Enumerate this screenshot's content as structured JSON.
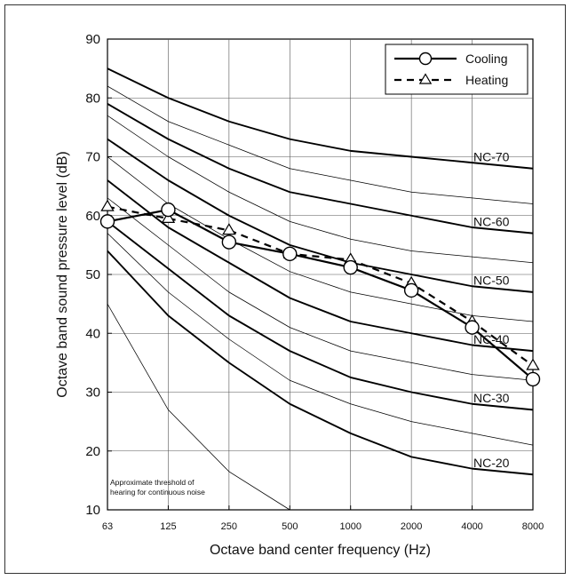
{
  "chart_data": {
    "type": "line",
    "xlabel": "Octave band center frequency (Hz)",
    "ylabel": "Octave band sound pressure level (dB)",
    "x_categories": [
      "63",
      "125",
      "250",
      "500",
      "1000",
      "2000",
      "4000",
      "8000"
    ],
    "ylim": [
      10,
      90
    ],
    "yticks": [
      10,
      20,
      30,
      40,
      50,
      60,
      70,
      80,
      90
    ],
    "grid": true,
    "legend_position": "top-right",
    "series": [
      {
        "name": "Cooling",
        "style": "solid-circle",
        "color": "#000000",
        "values": [
          59,
          61,
          55.5,
          53.5,
          51.2,
          47.3,
          41,
          32.2
        ]
      },
      {
        "name": "Heating",
        "style": "dashed-triangle",
        "color": "#000000",
        "values": [
          61.5,
          59.5,
          57.5,
          53.5,
          52.5,
          48.5,
          42,
          34.5
        ]
      }
    ],
    "nc_curves": [
      {
        "label": "NC-70",
        "values": [
          85,
          80,
          76,
          73,
          71,
          70,
          69,
          68
        ]
      },
      {
        "label": "",
        "values": [
          82,
          76,
          72,
          68,
          66,
          64,
          63,
          62
        ]
      },
      {
        "label": "NC-60",
        "values": [
          79,
          73,
          68,
          64,
          62,
          60,
          58,
          57
        ]
      },
      {
        "label": "",
        "values": [
          77,
          70,
          64,
          59,
          56,
          54,
          53,
          52
        ]
      },
      {
        "label": "NC-50",
        "values": [
          73,
          66,
          60,
          55,
          52,
          50,
          48,
          47
        ]
      },
      {
        "label": "",
        "values": [
          70,
          62,
          56,
          50.5,
          47,
          45,
          43,
          42
        ]
      },
      {
        "label": "NC-40",
        "values": [
          66,
          58,
          52,
          46,
          42,
          40,
          38,
          37
        ]
      },
      {
        "label": "",
        "values": [
          63,
          55,
          47,
          41,
          37,
          35,
          33,
          32
        ]
      },
      {
        "label": "NC-30",
        "values": [
          59,
          51,
          43,
          37,
          32.5,
          30,
          28,
          27
        ]
      },
      {
        "label": "",
        "values": [
          57,
          47,
          39,
          32,
          28,
          25,
          23,
          21
        ]
      },
      {
        "label": "NC-20",
        "values": [
          54,
          43,
          35,
          28,
          23,
          19,
          17,
          16
        ]
      }
    ],
    "threshold_curve": {
      "values": [
        45,
        27,
        16.5,
        10
      ]
    },
    "annotation": {
      "line1": "Approximate threshold of",
      "line2": "hearing for continuous noise"
    }
  }
}
